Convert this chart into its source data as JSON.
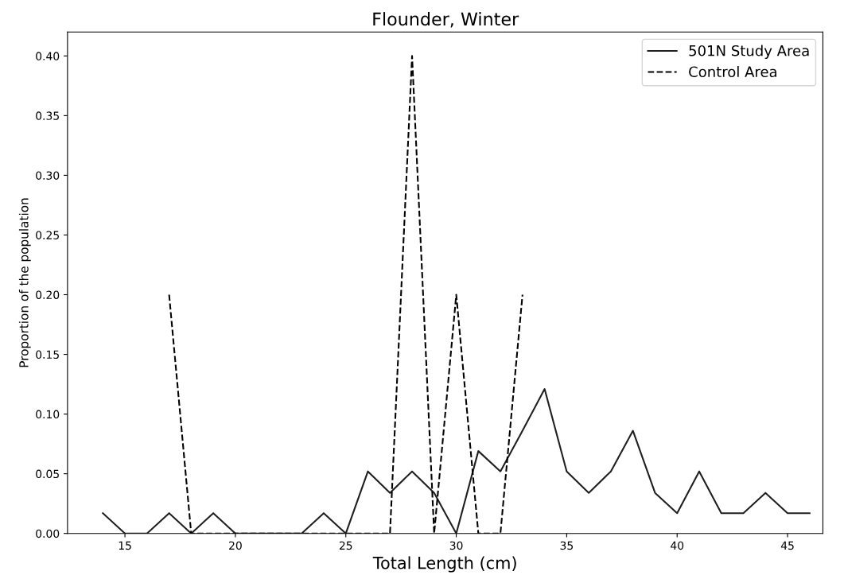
{
  "chart_data": {
    "type": "line",
    "title": "Flounder, Winter",
    "xlabel": "Total Length (cm)",
    "ylabel": "Proportion of the population",
    "xlim": [
      12.4,
      46.6
    ],
    "xticks": [
      15,
      20,
      25,
      30,
      35,
      40,
      45
    ],
    "ylim": [
      0,
      0.42
    ],
    "yticks": [
      {
        "value": 0,
        "label": "0.00"
      },
      {
        "value": 0.05,
        "label": "0.05"
      },
      {
        "value": 0.1,
        "label": "0.10"
      },
      {
        "value": 0.15,
        "label": "0.15"
      },
      {
        "value": 0.2,
        "label": "0.20"
      },
      {
        "value": 0.25,
        "label": "0.25"
      },
      {
        "value": 0.3,
        "label": "0.30"
      },
      {
        "value": 0.35,
        "label": "0.35"
      },
      {
        "value": 0.4,
        "label": "0.40"
      }
    ],
    "grid": false,
    "legend": "top right",
    "marker": "none",
    "series": [
      {
        "name": "501N Study Area",
        "color": "#1f1f1f",
        "line_style": "solid",
        "x": [
          14,
          15,
          16,
          17,
          18,
          19,
          20,
          21,
          22,
          23,
          24,
          25,
          26,
          27,
          28,
          29,
          30,
          31,
          32,
          33,
          34,
          35,
          36,
          37,
          38,
          39,
          40,
          41,
          42,
          43,
          44,
          45,
          46
        ],
        "values": [
          0.017,
          0,
          0,
          0.017,
          0,
          0.017,
          0,
          0,
          0,
          0,
          0.017,
          0,
          0.052,
          0.034,
          0.052,
          0.034,
          0,
          0.069,
          0.052,
          0.086,
          0.121,
          0.052,
          0.034,
          0.052,
          0.086,
          0.034,
          0.017,
          0.052,
          0.017,
          0.017,
          0.034,
          0.017,
          0.017
        ]
      },
      {
        "name": "Control Area",
        "color": "#000000",
        "line_style": "dashed",
        "x": [
          17,
          18,
          19,
          20,
          21,
          22,
          23,
          24,
          25,
          26,
          27,
          28,
          29,
          30,
          31,
          32,
          33
        ],
        "values": [
          0.2,
          0,
          0,
          0,
          0,
          0,
          0,
          0,
          0,
          0,
          0,
          0.4,
          0,
          0.2,
          0,
          0,
          0.2
        ]
      }
    ]
  }
}
